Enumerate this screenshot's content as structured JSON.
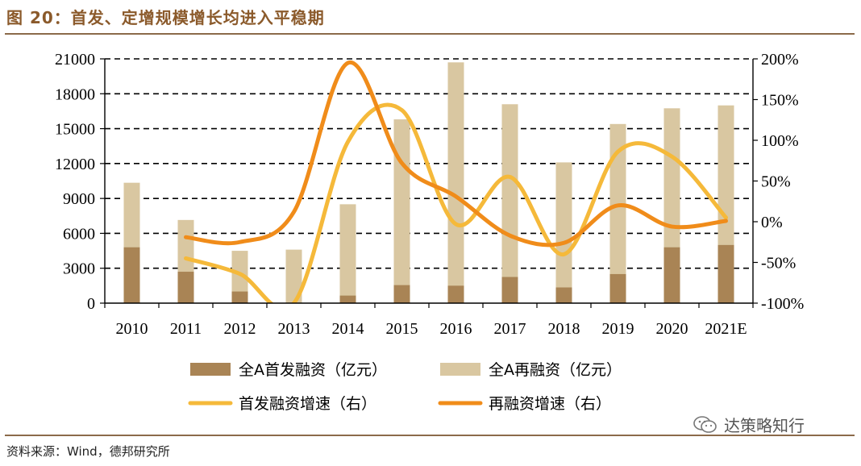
{
  "header": {
    "title": "图 20：首发、定增规模增长均进入平稳期"
  },
  "footer": {
    "source": "资料来源：Wind，德邦研究所"
  },
  "watermark": {
    "text": "达策略知行",
    "icon": "wechat-icon"
  },
  "colors": {
    "ipo_bar": "#A98455",
    "refi_bar": "#D9C7A1",
    "ipo_line": "#F5B93A",
    "refi_line": "#F08C1A",
    "grid": "#000000",
    "accent": "#8B5A2B"
  },
  "chart_data": {
    "type": "bar+line",
    "title": "首发、定增规模增长均进入平稳期",
    "categories": [
      "2010",
      "2011",
      "2012",
      "2013",
      "2014",
      "2015",
      "2016",
      "2017",
      "2018",
      "2019",
      "2020",
      "2021E"
    ],
    "y_left": {
      "ylim": [
        0,
        21000
      ],
      "ticks": [
        "0",
        "3000",
        "6000",
        "9000",
        "12000",
        "15000",
        "18000",
        "21000"
      ],
      "tick_values": [
        0,
        3000,
        6000,
        9000,
        12000,
        15000,
        18000,
        21000
      ]
    },
    "y_right": {
      "ylim": [
        -100,
        200
      ],
      "ticks": [
        "-100%",
        "-50%",
        "0%",
        "50%",
        "100%",
        "150%",
        "200%"
      ],
      "tick_values": [
        -100,
        -50,
        0,
        50,
        100,
        150,
        200
      ]
    },
    "grid": "horizontal-dashed",
    "series": [
      {
        "name": "全A首发融资（亿元）",
        "kind": "bar",
        "axis": "left",
        "color_key": "ipo_bar",
        "values": [
          4800,
          2700,
          1000,
          0,
          650,
          1550,
          1500,
          2250,
          1350,
          2500,
          4800,
          5000
        ]
      },
      {
        "name": "全A再融资（亿元）",
        "kind": "bar",
        "axis": "left",
        "color_key": "refi_bar",
        "values": [
          10350,
          7150,
          4500,
          4600,
          8500,
          15800,
          20700,
          17100,
          12100,
          15400,
          16750,
          17000
        ]
      },
      {
        "name": "首发融资增速（右）",
        "kind": "line",
        "axis": "right",
        "color_key": "ipo_line",
        "values": [
          null,
          -45,
          -64,
          -100,
          98,
          137,
          -3,
          55,
          -40,
          86,
          80,
          5
        ]
      },
      {
        "name": "再融资增速（右）",
        "kind": "line",
        "axis": "right",
        "color_key": "refi_line",
        "values": [
          null,
          -19,
          -25,
          12,
          195,
          72,
          31,
          -17,
          -26,
          20,
          -6,
          1
        ]
      }
    ],
    "legend": {
      "placement": "bottom",
      "items": [
        "全A首发融资（亿元）",
        "全A再融资（亿元）",
        "首发融资增速（右）",
        "再融资增速（右）"
      ]
    }
  }
}
